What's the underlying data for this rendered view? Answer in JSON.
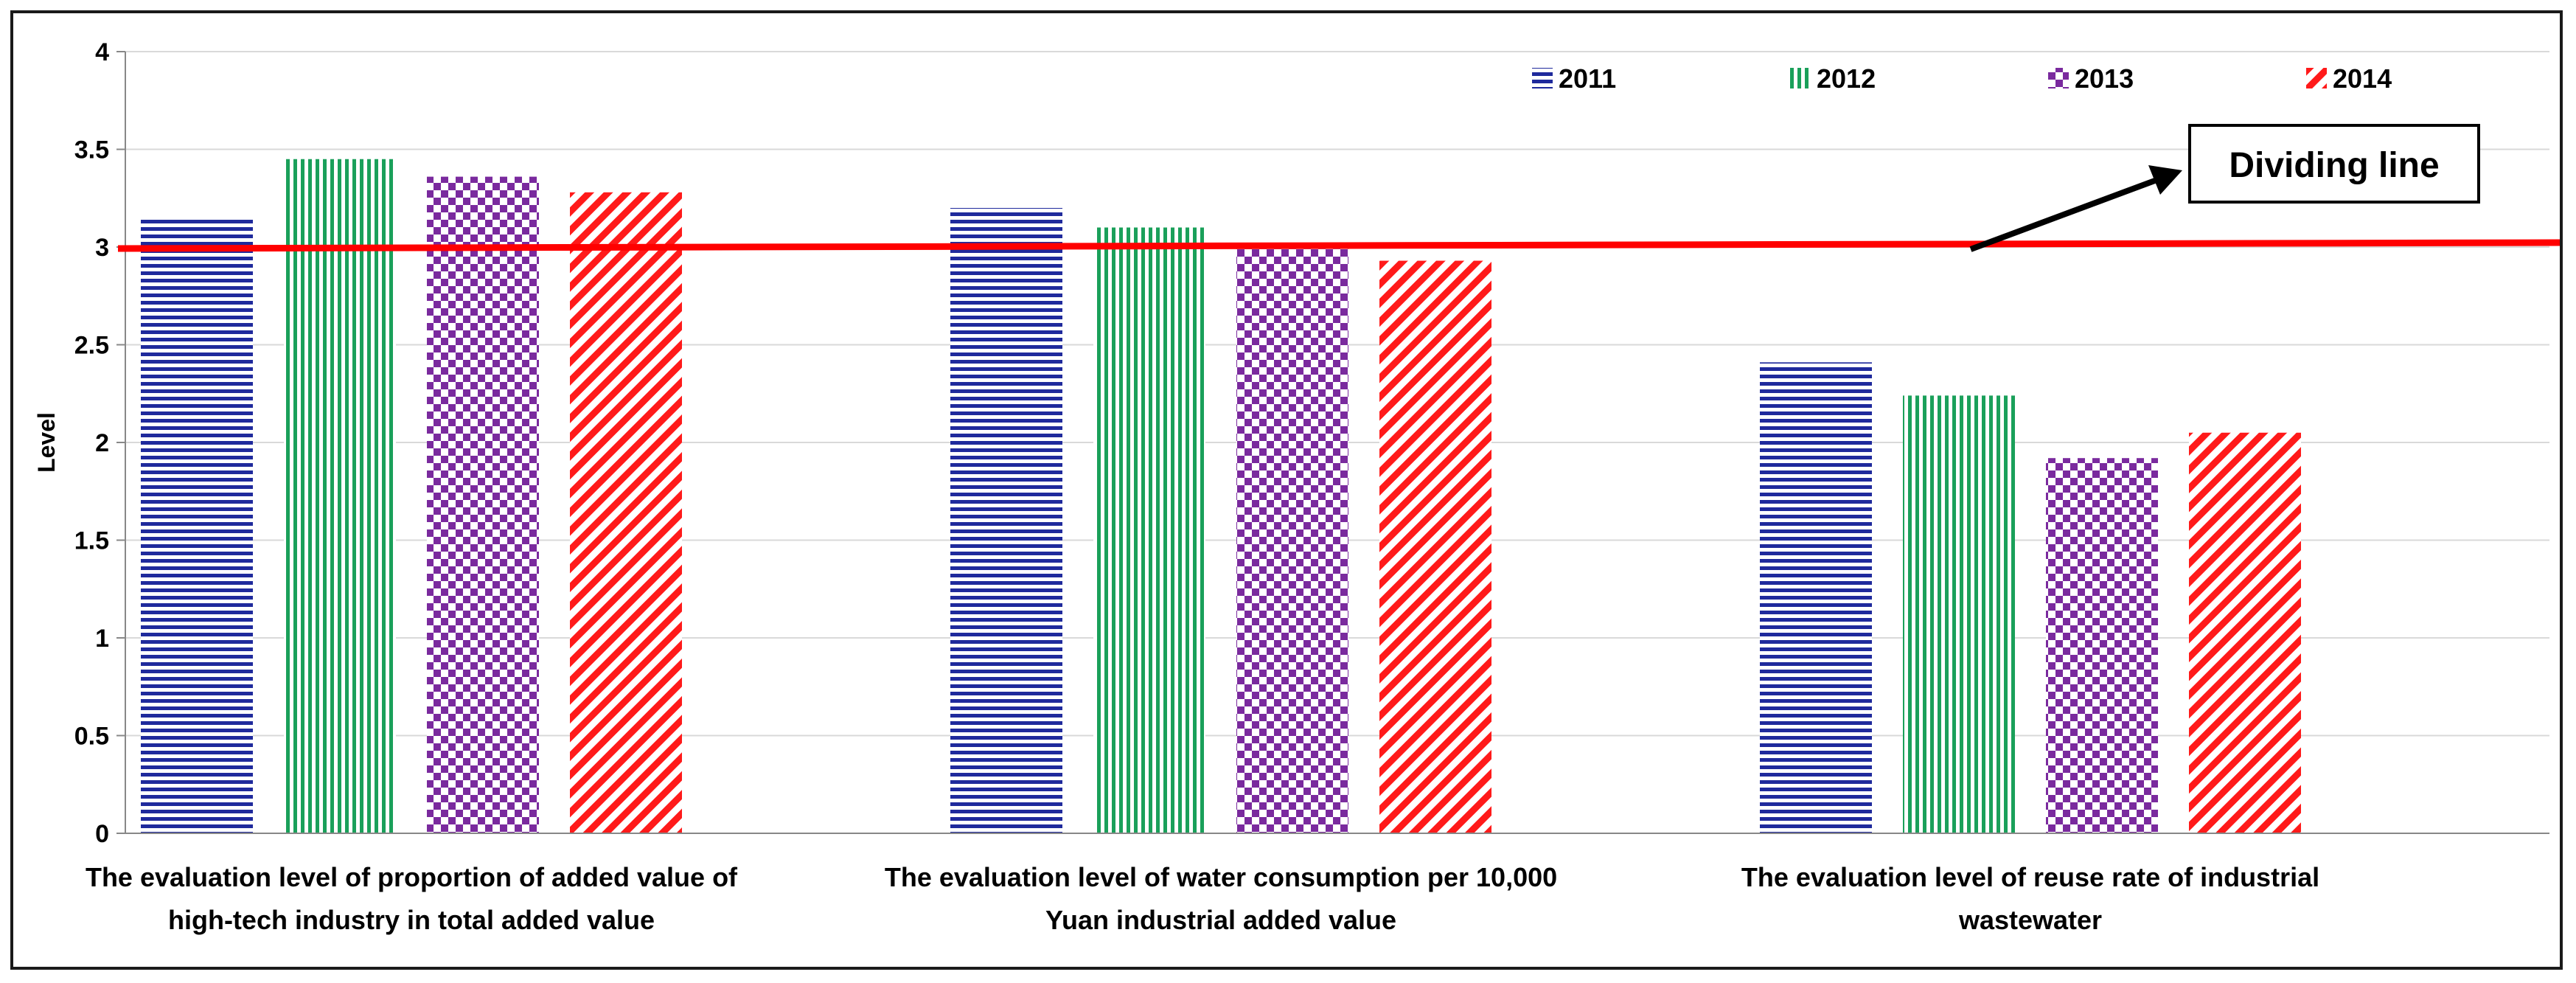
{
  "chart_data": {
    "type": "bar",
    "ylabel": "Level",
    "xlabel": "",
    "title": "",
    "ylim": [
      0,
      4
    ],
    "yticks": [
      "0",
      "0.5",
      "1",
      "1.5",
      "2",
      "2.5",
      "3",
      "3.5",
      "4"
    ],
    "grid": true,
    "legend_position": "top-right",
    "categories": [
      [
        "The evaluation level of proportion of added value of",
        "high-tech industry in total added value"
      ],
      [
        "The evaluation level of water consumption per 10,000",
        "Yuan industrial added value"
      ],
      [
        "The evaluation level of reuse rate of industrial",
        "wastewater"
      ]
    ],
    "series": [
      {
        "name": "2011",
        "values": [
          3.15,
          3.2,
          2.41
        ],
        "color": "#1f2a9c",
        "pattern": "horizontal-lines"
      },
      {
        "name": "2012",
        "values": [
          3.45,
          3.1,
          2.24
        ],
        "color": "#1aa05a",
        "pattern": "vertical-lines"
      },
      {
        "name": "2013",
        "values": [
          3.36,
          2.99,
          1.92
        ],
        "color": "#7a2a9e",
        "pattern": "checkerboard"
      },
      {
        "name": "2014",
        "values": [
          3.28,
          2.93,
          2.05
        ],
        "color": "#ff1a1a",
        "pattern": "diagonal-lines"
      }
    ],
    "reference_line": {
      "value": 3.0,
      "color": "#ff0000"
    },
    "annotation": "Dividing line"
  }
}
